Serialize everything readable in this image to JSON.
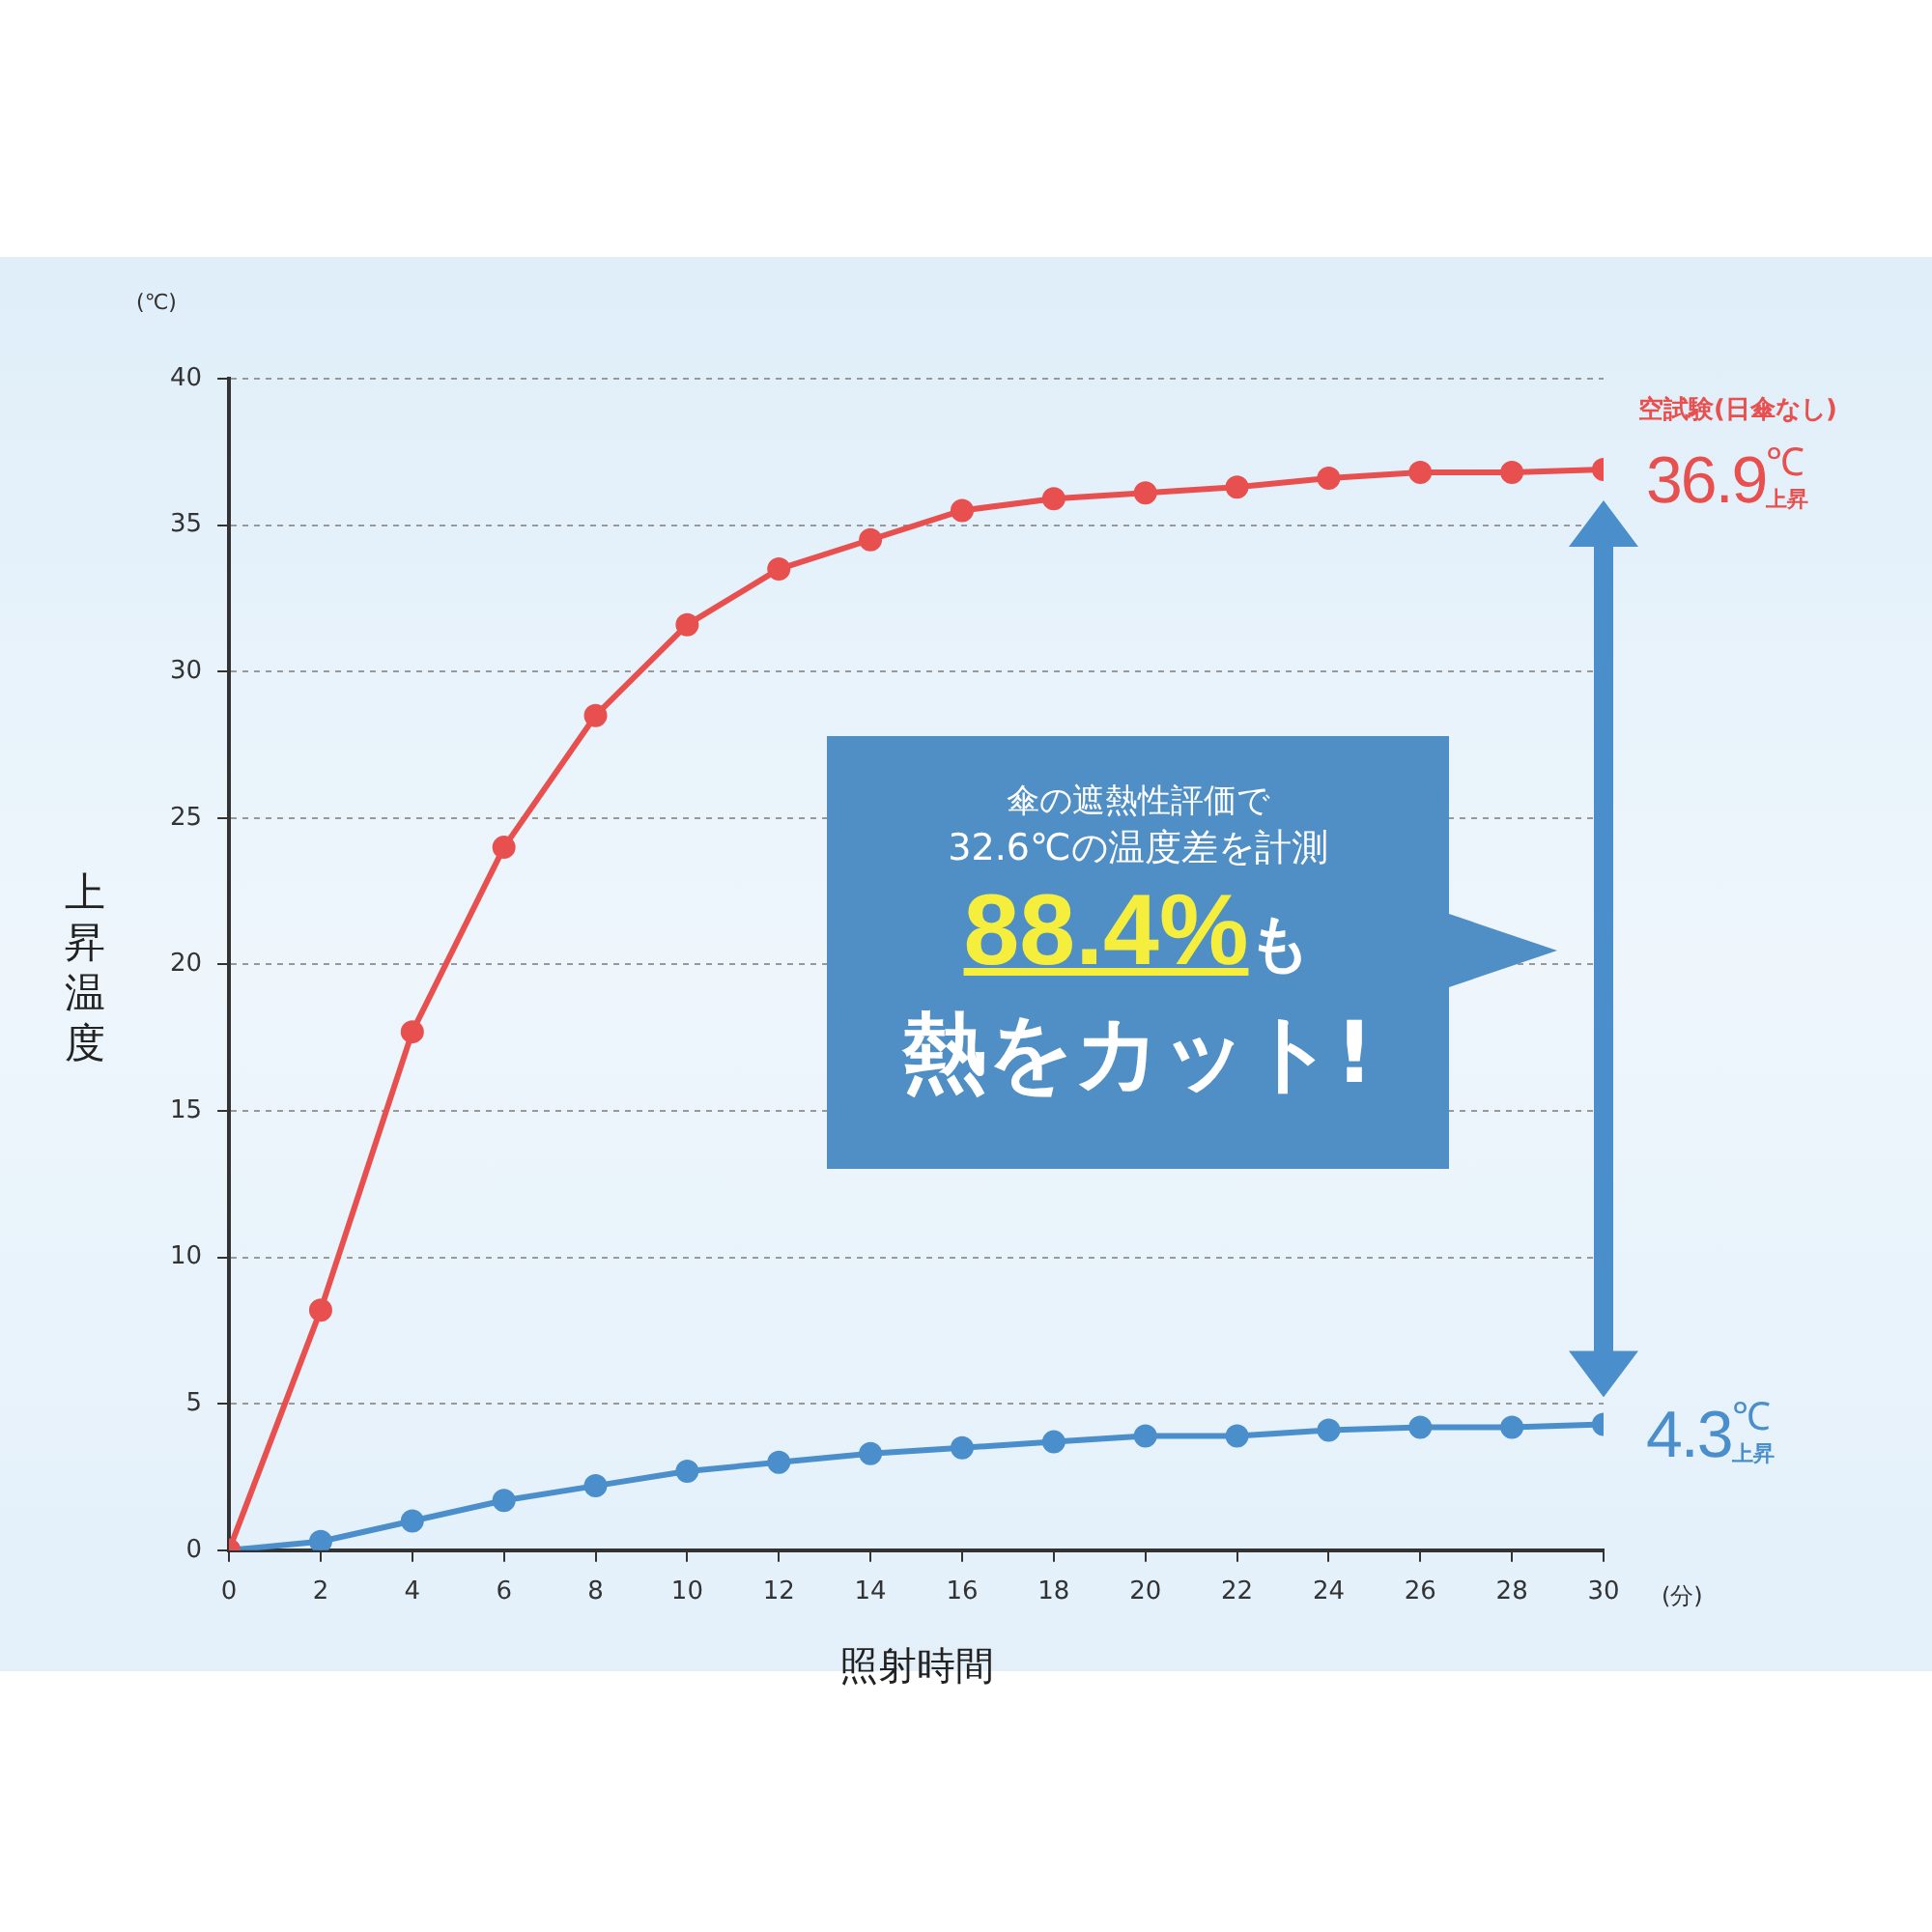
{
  "chart_data": {
    "type": "line",
    "xlabel": "照射時間",
    "ylabel": "上昇温度",
    "x": [
      0,
      2,
      4,
      6,
      8,
      10,
      12,
      14,
      16,
      18,
      20,
      22,
      24,
      26,
      28,
      30
    ],
    "series": [
      {
        "name": "空試験(日傘なし)",
        "color": "#e8504f",
        "values": [
          0,
          8.2,
          17.7,
          24.0,
          28.5,
          31.6,
          33.5,
          34.5,
          35.5,
          35.9,
          36.1,
          36.3,
          36.6,
          36.8,
          36.8,
          36.9
        ]
      },
      {
        "color": "#4a8fcb",
        "values": [
          0,
          0.3,
          1.0,
          1.7,
          2.2,
          2.7,
          3.0,
          3.3,
          3.5,
          3.7,
          3.9,
          3.9,
          4.1,
          4.2,
          4.2,
          4.3
        ]
      }
    ],
    "xlim": [
      0,
      30
    ],
    "xticks": [
      0,
      2,
      4,
      6,
      8,
      10,
      12,
      14,
      16,
      18,
      20,
      22,
      24,
      26,
      28,
      30
    ],
    "ylim": [
      0,
      40
    ],
    "yticks": [
      0,
      5,
      10,
      15,
      20,
      25,
      30,
      35,
      40
    ],
    "grid": "y",
    "legend": false,
    "marker": "circle",
    "line_style": "solid",
    "annotations": [
      "(℃)",
      "(分)",
      {
        "text": "36.9$^{℃}$$_{上昇}$",
        "x": 30,
        "y": 36.9
      },
      {
        "text": "4.3$^{℃}$$_{上昇}$",
        "x": 30,
        "y": 4.3
      },
      "傘の遮熱性評価で",
      "32.6℃の温度差を計測",
      "88.4%も",
      "熱をカット!"
    ]
  }
}
